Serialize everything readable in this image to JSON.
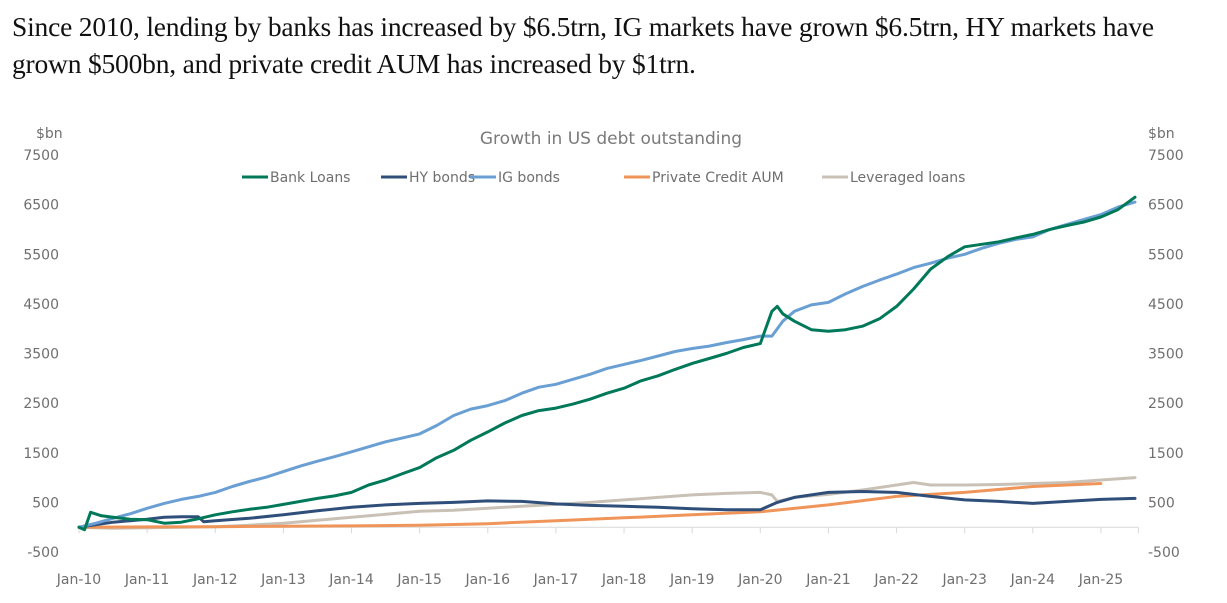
{
  "headline": "Since 2010, lending by banks has increased by $6.5trn, IG markets have grown $6.5trn, HY markets have grown $500bn, and private credit AUM has increased by $1trn.",
  "chart_data": {
    "type": "line",
    "title": "Growth in US debt outstanding",
    "ylabel_left": "$bn",
    "ylabel_right": "$bn",
    "xlabel": "",
    "ylim": [
      -500,
      7500
    ],
    "yticks": [
      -500,
      500,
      1500,
      2500,
      3500,
      4500,
      5500,
      6500,
      7500
    ],
    "ytick_labels": [
      "-500",
      "500",
      "1500",
      "2500",
      "3500",
      "4500",
      "5500",
      "6500",
      "7500"
    ],
    "xlim": [
      2010.0,
      2025.55
    ],
    "xticks": [
      2010,
      2011,
      2012,
      2013,
      2014,
      2015,
      2016,
      2017,
      2018,
      2019,
      2020,
      2021,
      2022,
      2023,
      2024,
      2025
    ],
    "xtick_labels": [
      "Jan-10",
      "Jan-11",
      "Jan-12",
      "Jan-13",
      "Jan-14",
      "Jan-15",
      "Jan-16",
      "Jan-17",
      "Jan-18",
      "Jan-19",
      "Jan-20",
      "Jan-21",
      "Jan-22",
      "Jan-23",
      "Jan-24",
      "Jan-25"
    ],
    "grid": false,
    "zero_line": true,
    "legend_position": "top-center",
    "series": [
      {
        "name": "Bank Loans",
        "color": "#00785a",
        "x": [
          2010.0,
          2010.08,
          2010.17,
          2010.33,
          2010.5,
          2010.75,
          2011.0,
          2011.25,
          2011.5,
          2011.75,
          2012.0,
          2012.25,
          2012.5,
          2012.75,
          2013.0,
          2013.25,
          2013.5,
          2013.75,
          2014.0,
          2014.25,
          2014.5,
          2014.75,
          2015.0,
          2015.25,
          2015.5,
          2015.75,
          2016.0,
          2016.25,
          2016.5,
          2016.75,
          2017.0,
          2017.25,
          2017.5,
          2017.75,
          2018.0,
          2018.25,
          2018.5,
          2018.75,
          2019.0,
          2019.25,
          2019.5,
          2019.75,
          2020.0,
          2020.17,
          2020.25,
          2020.33,
          2020.5,
          2020.75,
          2021.0,
          2021.25,
          2021.5,
          2021.75,
          2022.0,
          2022.25,
          2022.5,
          2022.75,
          2023.0,
          2023.25,
          2023.5,
          2023.75,
          2024.0,
          2024.25,
          2024.5,
          2024.75,
          2025.0,
          2025.25,
          2025.5
        ],
        "values": [
          0,
          -50,
          300,
          230,
          200,
          160,
          150,
          80,
          100,
          170,
          250,
          310,
          360,
          400,
          460,
          520,
          580,
          630,
          700,
          850,
          950,
          1080,
          1200,
          1400,
          1550,
          1750,
          1920,
          2100,
          2250,
          2350,
          2400,
          2480,
          2580,
          2700,
          2800,
          2950,
          3050,
          3180,
          3300,
          3400,
          3500,
          3620,
          3700,
          4350,
          4450,
          4300,
          4150,
          3980,
          3950,
          3980,
          4050,
          4200,
          4450,
          4800,
          5200,
          5450,
          5650,
          5700,
          5750,
          5830,
          5900,
          6000,
          6080,
          6150,
          6250,
          6400,
          6650
        ]
      },
      {
        "name": "HY bonds",
        "color": "#2f4f7a",
        "x": [
          2010.0,
          2010.25,
          2010.5,
          2010.75,
          2011.0,
          2011.25,
          2011.5,
          2011.75,
          2011.83,
          2012.0,
          2012.5,
          2013.0,
          2013.5,
          2014.0,
          2014.5,
          2015.0,
          2015.5,
          2016.0,
          2016.5,
          2017.0,
          2017.5,
          2018.0,
          2018.5,
          2019.0,
          2019.5,
          2020.0,
          2020.25,
          2020.5,
          2021.0,
          2021.5,
          2022.0,
          2022.5,
          2023.0,
          2023.5,
          2024.0,
          2024.5,
          2025.0,
          2025.5
        ],
        "values": [
          0,
          50,
          100,
          130,
          160,
          200,
          210,
          210,
          110,
          130,
          180,
          250,
          330,
          400,
          450,
          480,
          500,
          530,
          520,
          470,
          440,
          420,
          400,
          370,
          350,
          350,
          500,
          600,
          700,
          720,
          700,
          620,
          550,
          520,
          480,
          520,
          560,
          580
        ]
      },
      {
        "name": "IG bonds",
        "color": "#6a9fd4",
        "x": [
          2010.0,
          2010.25,
          2010.5,
          2010.75,
          2011.0,
          2011.25,
          2011.5,
          2011.75,
          2012.0,
          2012.25,
          2012.5,
          2012.75,
          2013.0,
          2013.25,
          2013.5,
          2013.75,
          2014.0,
          2014.25,
          2014.5,
          2014.75,
          2015.0,
          2015.25,
          2015.5,
          2015.75,
          2016.0,
          2016.25,
          2016.5,
          2016.75,
          2017.0,
          2017.25,
          2017.5,
          2017.75,
          2018.0,
          2018.25,
          2018.5,
          2018.75,
          2019.0,
          2019.25,
          2019.5,
          2019.75,
          2020.0,
          2020.17,
          2020.33,
          2020.5,
          2020.75,
          2021.0,
          2021.25,
          2021.5,
          2021.75,
          2022.0,
          2022.25,
          2022.5,
          2022.75,
          2023.0,
          2023.25,
          2023.5,
          2023.75,
          2024.0,
          2024.25,
          2024.5,
          2024.75,
          2025.0,
          2025.25,
          2025.5
        ],
        "values": [
          0,
          80,
          180,
          270,
          380,
          480,
          560,
          620,
          700,
          820,
          920,
          1010,
          1120,
          1230,
          1330,
          1420,
          1520,
          1620,
          1720,
          1800,
          1880,
          2050,
          2250,
          2380,
          2450,
          2550,
          2700,
          2820,
          2880,
          2980,
          3080,
          3200,
          3280,
          3360,
          3450,
          3540,
          3600,
          3650,
          3720,
          3780,
          3850,
          3850,
          4150,
          4350,
          4480,
          4530,
          4700,
          4850,
          4980,
          5100,
          5230,
          5320,
          5420,
          5500,
          5620,
          5720,
          5800,
          5850,
          6000,
          6100,
          6200,
          6300,
          6450,
          6550
        ]
      },
      {
        "name": "Private Credit AUM",
        "color": "#f0955a",
        "x": [
          2010.0,
          2011.0,
          2012.0,
          2013.0,
          2014.0,
          2015.0,
          2016.0,
          2017.0,
          2018.0,
          2019.0,
          2020.0,
          2021.0,
          2022.0,
          2023.0,
          2024.0,
          2025.0
        ],
        "values": [
          0,
          5,
          10,
          20,
          25,
          40,
          70,
          130,
          190,
          250,
          310,
          450,
          620,
          700,
          820,
          880
        ]
      },
      {
        "name": "Leveraged loans",
        "color": "#c9c1b6",
        "x": [
          2010.0,
          2010.5,
          2011.0,
          2011.5,
          2012.0,
          2012.5,
          2013.0,
          2013.5,
          2014.0,
          2014.5,
          2015.0,
          2015.5,
          2016.0,
          2016.5,
          2017.0,
          2017.5,
          2018.0,
          2018.5,
          2019.0,
          2019.5,
          2020.0,
          2020.17,
          2020.25,
          2020.5,
          2021.0,
          2021.5,
          2022.0,
          2022.25,
          2022.5,
          2023.0,
          2023.5,
          2024.0,
          2024.5,
          2025.0,
          2025.5
        ],
        "values": [
          0,
          -20,
          -10,
          0,
          10,
          40,
          80,
          140,
          200,
          260,
          320,
          340,
          380,
          420,
          460,
          500,
          550,
          600,
          650,
          680,
          700,
          650,
          520,
          600,
          660,
          750,
          850,
          900,
          850,
          850,
          860,
          880,
          900,
          950,
          1000
        ]
      }
    ]
  }
}
